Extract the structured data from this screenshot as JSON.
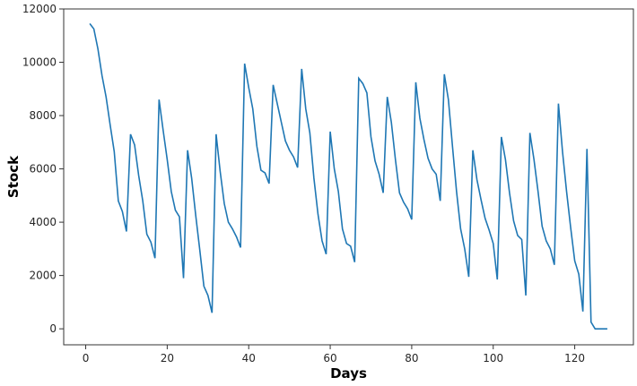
{
  "chart_data": {
    "type": "line",
    "title": "",
    "xlabel": "Days",
    "ylabel": "Stock",
    "xlim": [
      -5.4,
      134.4
    ],
    "ylim": [
      -600,
      12000
    ],
    "xticks": [
      0,
      20,
      40,
      60,
      80,
      100,
      120
    ],
    "yticks": [
      0,
      2000,
      4000,
      6000,
      8000,
      10000,
      12000
    ],
    "grid": false,
    "line_color": "#1f77b4",
    "series": [
      {
        "x": [
          1,
          2,
          3,
          4,
          5,
          6,
          7,
          8,
          9,
          10,
          11,
          12,
          13,
          14,
          15,
          16,
          17,
          18,
          19,
          20,
          21,
          22,
          23,
          24,
          25,
          26,
          27,
          28,
          29,
          30,
          31,
          32,
          33,
          34,
          35,
          36,
          37,
          38,
          39,
          40,
          41,
          42,
          43,
          44,
          45,
          46,
          47,
          48,
          49,
          50,
          51,
          52,
          53,
          54,
          55,
          56,
          57,
          58,
          59,
          60,
          61,
          62,
          63,
          64,
          65,
          66,
          67,
          68,
          69,
          70,
          71,
          72,
          73,
          74,
          75,
          76,
          77,
          78,
          79,
          80,
          81,
          82,
          83,
          84,
          85,
          86,
          87,
          88,
          89,
          90,
          91,
          92,
          93,
          94,
          95,
          96,
          97,
          98,
          99,
          100,
          101,
          102,
          103,
          104,
          105,
          106,
          107,
          108,
          109,
          110,
          111,
          112,
          113,
          114,
          115,
          116,
          117,
          118,
          119,
          120,
          121,
          122,
          123,
          124,
          125,
          126,
          127,
          128
        ],
        "values": [
          11450,
          11250,
          10500,
          9500,
          8700,
          7650,
          6650,
          4800,
          4400,
          3650,
          7300,
          6900,
          5750,
          4800,
          3550,
          3250,
          2650,
          8600,
          7450,
          6350,
          5150,
          4450,
          4200,
          1900,
          6700,
          5650,
          4250,
          2950,
          1600,
          1250,
          600,
          7300,
          5900,
          4700,
          4000,
          3750,
          3450,
          3050,
          9950,
          9050,
          8250,
          6850,
          5950,
          5850,
          5450,
          9150,
          8450,
          7750,
          7050,
          6700,
          6450,
          6050,
          9750,
          8250,
          7350,
          5650,
          4300,
          3300,
          2800,
          7400,
          6000,
          5150,
          3750,
          3200,
          3100,
          2500,
          9400,
          9200,
          8850,
          7200,
          6300,
          5800,
          5100,
          8700,
          7750,
          6350,
          5100,
          4750,
          4500,
          4100,
          9250,
          7900,
          7100,
          6400,
          6000,
          5800,
          4800,
          9550,
          8600,
          6850,
          5150,
          3750,
          3000,
          1950,
          6700,
          5600,
          4850,
          4150,
          3700,
          3200,
          1850,
          7200,
          6350,
          5100,
          4050,
          3500,
          3350,
          1250,
          7350,
          6350,
          5150,
          3850,
          3300,
          3000,
          2400,
          8450,
          6650,
          5150,
          3800,
          2550,
          2050,
          650,
          6750,
          250,
          0,
          0,
          0,
          0
        ]
      }
    ]
  }
}
